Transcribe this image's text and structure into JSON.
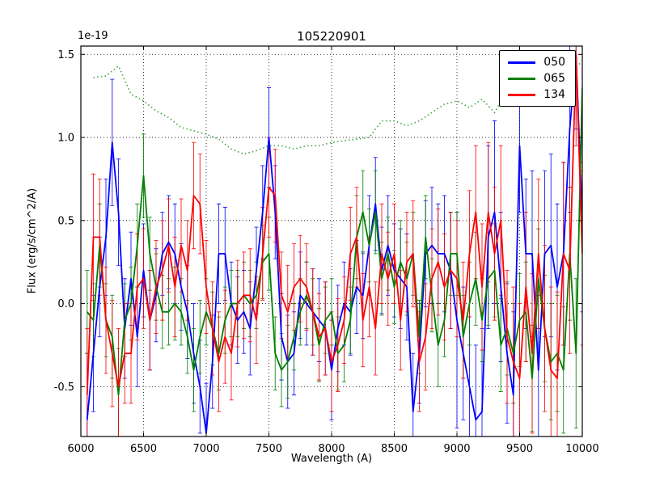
{
  "figure": {
    "title": "105220901",
    "xlabel": "Wavelength (A)",
    "ylabel": "Flux (erg/s/cm^2/A)",
    "offset_text": "1e-19"
  },
  "chart_data": {
    "type": "line",
    "title": "105220901",
    "xlabel": "Wavelength (A)",
    "ylabel": "Flux (erg/s/cm^2/A)",
    "y_scale_factor": "1e-19",
    "xlim": [
      6000,
      10000
    ],
    "ylim": [
      -0.8,
      1.55
    ],
    "xticks": [
      6000,
      6500,
      7000,
      7500,
      8000,
      8500,
      9000,
      9500,
      10000
    ],
    "xtick_labels": [
      "6000",
      "6500",
      "7000",
      "7500",
      "8000",
      "8500",
      "9000",
      "9500",
      "10000"
    ],
    "yticks": [
      -0.5,
      0.0,
      0.5,
      1.0,
      1.5
    ],
    "ytick_labels": [
      "-0.5",
      "0.0",
      "0.5",
      "1.0",
      "1.5"
    ],
    "grid": true,
    "legend_position": "upper right",
    "x": [
      6050,
      6100,
      6150,
      6200,
      6250,
      6300,
      6350,
      6400,
      6450,
      6500,
      6550,
      6600,
      6650,
      6700,
      6750,
      6800,
      6850,
      6900,
      6950,
      7000,
      7050,
      7100,
      7150,
      7200,
      7250,
      7300,
      7350,
      7400,
      7450,
      7500,
      7550,
      7600,
      7650,
      7700,
      7750,
      7800,
      7850,
      7900,
      7950,
      8000,
      8050,
      8100,
      8150,
      8200,
      8250,
      8300,
      8350,
      8400,
      8450,
      8500,
      8550,
      8600,
      8650,
      8700,
      8750,
      8800,
      8850,
      8900,
      8950,
      9000,
      9050,
      9100,
      9150,
      9200,
      9250,
      9300,
      9350,
      9400,
      9450,
      9500,
      9550,
      9600,
      9650,
      9700,
      9750,
      9800,
      9850,
      9900,
      9950,
      10000
    ],
    "series": [
      {
        "name": "050",
        "color": "#0000ff",
        "values": [
          -0.7,
          -0.3,
          0.1,
          0.4,
          0.97,
          0.55,
          -0.15,
          0.15,
          -0.2,
          0.2,
          -0.1,
          0.05,
          0.3,
          0.37,
          0.3,
          0.1,
          -0.05,
          -0.3,
          -0.5,
          -0.78,
          -0.35,
          0.3,
          0.3,
          0.0,
          -0.1,
          -0.05,
          -0.15,
          0.2,
          0.55,
          1.0,
          0.55,
          -0.2,
          -0.35,
          -0.3,
          0.05,
          0.0,
          -0.05,
          -0.1,
          -0.15,
          -0.4,
          -0.15,
          0.0,
          -0.05,
          0.1,
          0.05,
          0.35,
          0.6,
          0.2,
          0.35,
          0.2,
          0.15,
          0.1,
          -0.65,
          -0.3,
          0.3,
          0.35,
          0.3,
          0.3,
          0.2,
          -0.1,
          -0.3,
          -0.5,
          -0.7,
          -0.65,
          0.4,
          0.55,
          0.1,
          -0.3,
          -0.55,
          0.95,
          0.3,
          0.3,
          -0.4,
          0.3,
          0.35,
          0.1,
          0.3,
          1.05,
          1.5,
          0.5
        ],
        "errors": [
          0.4,
          0.35,
          0.3,
          0.35,
          0.38,
          0.32,
          0.3,
          0.28,
          0.3,
          0.28,
          0.3,
          0.28,
          0.25,
          0.28,
          0.3,
          0.26,
          0.28,
          0.3,
          0.28,
          0.3,
          0.28,
          0.3,
          0.28,
          0.25,
          0.26,
          0.25,
          0.28,
          0.26,
          0.28,
          0.3,
          0.28,
          0.26,
          0.28,
          0.25,
          0.26,
          0.25,
          0.26,
          0.25,
          0.28,
          0.3,
          0.26,
          0.25,
          0.26,
          0.28,
          0.26,
          0.3,
          0.28,
          0.26,
          0.3,
          0.28,
          0.3,
          0.32,
          0.35,
          0.3,
          0.32,
          0.35,
          0.3,
          0.35,
          0.35,
          0.65,
          0.4,
          0.42,
          0.45,
          0.5,
          0.55,
          0.55,
          0.45,
          0.42,
          0.5,
          0.4,
          0.45,
          0.5,
          0.45,
          0.5,
          0.55,
          0.5,
          0.55,
          0.5,
          0.45,
          0.55
        ]
      },
      {
        "name": "065",
        "color": "#008000",
        "values": [
          -0.05,
          -0.1,
          0.35,
          -0.1,
          -0.2,
          -0.55,
          -0.1,
          0.0,
          0.35,
          0.77,
          0.3,
          0.1,
          -0.05,
          -0.05,
          0.0,
          -0.05,
          -0.2,
          -0.4,
          -0.2,
          -0.05,
          -0.15,
          -0.3,
          -0.1,
          0.0,
          0.0,
          0.05,
          0.0,
          0.05,
          0.25,
          0.3,
          -0.3,
          -0.4,
          -0.35,
          -0.2,
          -0.05,
          0.05,
          -0.05,
          -0.25,
          -0.1,
          -0.05,
          -0.3,
          -0.25,
          -0.1,
          0.4,
          0.55,
          0.35,
          0.55,
          0.15,
          0.3,
          0.1,
          0.25,
          0.15,
          0.3,
          -0.2,
          0.4,
          0.05,
          -0.25,
          -0.1,
          0.3,
          0.3,
          -0.2,
          0.0,
          0.15,
          -0.1,
          0.15,
          0.2,
          -0.25,
          -0.15,
          -0.3,
          -0.1,
          -0.05,
          -0.45,
          0.15,
          -0.15,
          -0.35,
          -0.3,
          -0.4,
          0.3,
          -0.3,
          1.3
        ],
        "errors": [
          0.25,
          0.22,
          0.25,
          0.22,
          0.25,
          0.28,
          0.22,
          0.22,
          0.25,
          0.25,
          0.22,
          0.2,
          0.22,
          0.2,
          0.22,
          0.2,
          0.22,
          0.25,
          0.22,
          0.2,
          0.22,
          0.22,
          0.2,
          0.2,
          0.2,
          0.2,
          0.2,
          0.2,
          0.22,
          0.22,
          0.22,
          0.22,
          0.22,
          0.2,
          0.2,
          0.2,
          0.2,
          0.22,
          0.2,
          0.2,
          0.22,
          0.22,
          0.2,
          0.25,
          0.25,
          0.22,
          0.25,
          0.22,
          0.22,
          0.22,
          0.25,
          0.22,
          0.25,
          0.22,
          0.25,
          0.22,
          0.25,
          0.22,
          0.25,
          0.25,
          0.25,
          0.25,
          0.28,
          0.25,
          0.28,
          0.28,
          0.28,
          0.28,
          0.3,
          0.28,
          0.3,
          0.32,
          0.3,
          0.32,
          0.35,
          0.35,
          0.38,
          0.4,
          0.45,
          0.5
        ]
      },
      {
        "name": "134",
        "color": "#ff0000",
        "values": [
          -0.55,
          0.4,
          0.4,
          -0.1,
          -0.3,
          -0.5,
          -0.3,
          -0.3,
          0.1,
          0.15,
          -0.1,
          0.1,
          0.2,
          0.35,
          0.1,
          0.35,
          0.2,
          0.65,
          0.6,
          0.1,
          -0.15,
          -0.35,
          -0.2,
          -0.3,
          0.0,
          0.05,
          0.05,
          -0.1,
          0.3,
          0.7,
          0.65,
          0.05,
          -0.05,
          0.1,
          0.15,
          0.1,
          -0.05,
          -0.2,
          -0.15,
          -0.35,
          -0.25,
          -0.1,
          0.3,
          0.4,
          -0.1,
          0.1,
          -0.15,
          0.3,
          0.15,
          0.3,
          -0.1,
          0.25,
          0.3,
          -0.35,
          -0.2,
          0.15,
          0.25,
          0.1,
          0.2,
          0.15,
          -0.1,
          0.3,
          0.55,
          0.1,
          0.55,
          0.3,
          0.5,
          -0.2,
          -0.35,
          -0.45,
          0.1,
          -0.3,
          0.3,
          -0.15,
          -0.4,
          -0.45,
          0.3,
          0.2,
          1.5,
          0.3
        ],
        "errors": [
          0.4,
          0.38,
          0.35,
          0.32,
          0.32,
          0.35,
          0.3,
          0.3,
          0.32,
          0.3,
          0.3,
          0.28,
          0.3,
          0.28,
          0.3,
          0.28,
          0.3,
          0.32,
          0.3,
          0.28,
          0.28,
          0.3,
          0.28,
          0.28,
          0.26,
          0.26,
          0.28,
          0.26,
          0.28,
          0.3,
          0.28,
          0.26,
          0.28,
          0.26,
          0.26,
          0.26,
          0.26,
          0.26,
          0.28,
          0.3,
          0.28,
          0.26,
          0.28,
          0.3,
          0.28,
          0.3,
          0.28,
          0.3,
          0.28,
          0.3,
          0.3,
          0.3,
          0.32,
          0.3,
          0.32,
          0.3,
          0.32,
          0.32,
          0.35,
          0.35,
          0.35,
          0.38,
          0.4,
          0.38,
          0.42,
          0.4,
          0.45,
          0.4,
          0.45,
          0.45,
          0.45,
          0.48,
          0.45,
          0.5,
          0.5,
          0.52,
          0.55,
          0.5,
          0.55,
          0.55
        ]
      }
    ],
    "overlay": {
      "name": "throughput-dotted-line",
      "color": "#44aa44",
      "style": "dotted",
      "x": [
        6100,
        6200,
        6300,
        6400,
        6500,
        6600,
        6700,
        6800,
        6900,
        7000,
        7100,
        7200,
        7300,
        7400,
        7500,
        7600,
        7700,
        7800,
        7900,
        8000,
        8100,
        8200,
        8300,
        8400,
        8500,
        8600,
        8700,
        8800,
        8900,
        9000,
        9100,
        9200,
        9300,
        9400,
        9500,
        9600,
        9700,
        9800,
        9900,
        10000
      ],
      "values": [
        1.36,
        1.37,
        1.43,
        1.26,
        1.22,
        1.16,
        1.12,
        1.06,
        1.04,
        1.02,
        0.99,
        0.93,
        0.9,
        0.92,
        0.95,
        0.95,
        0.93,
        0.95,
        0.95,
        0.97,
        0.98,
        0.99,
        1.0,
        1.1,
        1.1,
        1.07,
        1.1,
        1.15,
        1.2,
        1.22,
        1.18,
        1.23,
        1.15,
        1.28,
        1.3,
        1.32,
        1.35,
        1.38,
        1.42,
        1.45
      ]
    }
  }
}
